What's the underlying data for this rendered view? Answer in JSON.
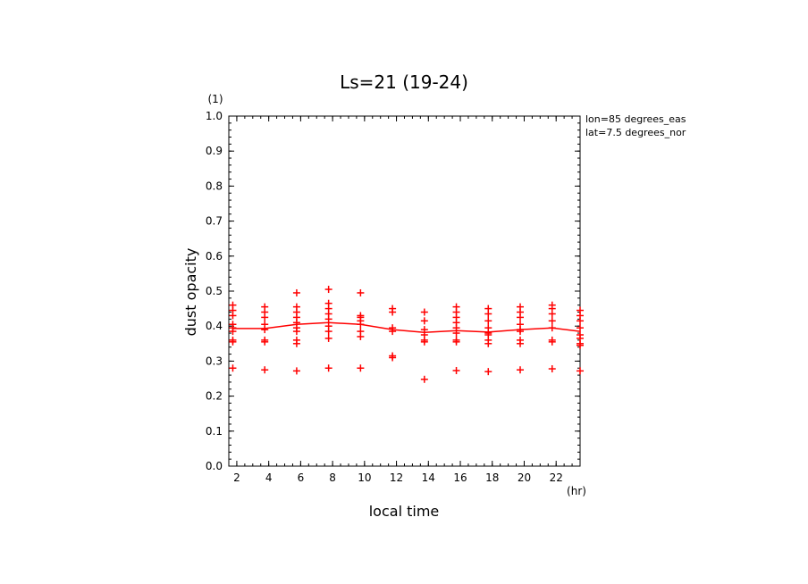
{
  "chart_data": {
    "type": "scatter",
    "title": "Ls=21 (19-24)",
    "xlabel": "local time",
    "ylabel": "dust opacity",
    "x_unit": "(hr)",
    "y_unit": "(1)",
    "xlim": [
      1.5,
      23.5
    ],
    "ylim": [
      0.0,
      1.0
    ],
    "x_ticks": [
      "2",
      "4",
      "6",
      "8",
      "10",
      "12",
      "14",
      "16",
      "18",
      "20",
      "22"
    ],
    "y_ticks": [
      "0.0",
      "0.1",
      "0.2",
      "0.3",
      "0.4",
      "0.5",
      "0.6",
      "0.7",
      "0.8",
      "0.9",
      "1.0"
    ],
    "annotations": [
      "lon=85 degrees_eas",
      "lat=7.5 degrees_nor"
    ],
    "grid": false,
    "colors": {
      "series": "#ff0000",
      "axes": "#000000"
    },
    "series": [
      {
        "type": "scatter",
        "marker": "plus",
        "points": [
          [
            1.75,
            0.46
          ],
          [
            1.75,
            0.445
          ],
          [
            1.75,
            0.43
          ],
          [
            1.75,
            0.405
          ],
          [
            1.75,
            0.395
          ],
          [
            1.75,
            0.385
          ],
          [
            1.75,
            0.36
          ],
          [
            1.75,
            0.355
          ],
          [
            1.75,
            0.28
          ],
          [
            3.75,
            0.455
          ],
          [
            3.75,
            0.44
          ],
          [
            3.75,
            0.425
          ],
          [
            3.75,
            0.405
          ],
          [
            3.75,
            0.39
          ],
          [
            3.75,
            0.36
          ],
          [
            3.75,
            0.355
          ],
          [
            3.75,
            0.275
          ],
          [
            5.75,
            0.495
          ],
          [
            5.75,
            0.455
          ],
          [
            5.75,
            0.44
          ],
          [
            5.75,
            0.425
          ],
          [
            5.75,
            0.41
          ],
          [
            5.75,
            0.395
          ],
          [
            5.75,
            0.385
          ],
          [
            5.75,
            0.36
          ],
          [
            5.75,
            0.35
          ],
          [
            5.75,
            0.272
          ],
          [
            7.75,
            0.505
          ],
          [
            7.75,
            0.465
          ],
          [
            7.75,
            0.45
          ],
          [
            7.75,
            0.435
          ],
          [
            7.75,
            0.42
          ],
          [
            7.75,
            0.4
          ],
          [
            7.75,
            0.385
          ],
          [
            7.75,
            0.365
          ],
          [
            7.75,
            0.28
          ],
          [
            9.75,
            0.495
          ],
          [
            9.75,
            0.43
          ],
          [
            9.75,
            0.425
          ],
          [
            9.75,
            0.415
          ],
          [
            9.75,
            0.405
          ],
          [
            9.75,
            0.385
          ],
          [
            9.75,
            0.37
          ],
          [
            9.75,
            0.28
          ],
          [
            11.75,
            0.45
          ],
          [
            11.75,
            0.44
          ],
          [
            11.75,
            0.395
          ],
          [
            11.75,
            0.385
          ],
          [
            11.75,
            0.315
          ],
          [
            11.75,
            0.31
          ],
          [
            13.75,
            0.44
          ],
          [
            13.75,
            0.415
          ],
          [
            13.75,
            0.39
          ],
          [
            13.75,
            0.375
          ],
          [
            13.75,
            0.36
          ],
          [
            13.75,
            0.355
          ],
          [
            13.75,
            0.248
          ],
          [
            15.75,
            0.455
          ],
          [
            15.75,
            0.44
          ],
          [
            15.75,
            0.425
          ],
          [
            15.75,
            0.41
          ],
          [
            15.75,
            0.395
          ],
          [
            15.75,
            0.38
          ],
          [
            15.75,
            0.36
          ],
          [
            15.75,
            0.355
          ],
          [
            15.75,
            0.273
          ],
          [
            17.75,
            0.45
          ],
          [
            17.75,
            0.435
          ],
          [
            17.75,
            0.415
          ],
          [
            17.75,
            0.395
          ],
          [
            17.75,
            0.38
          ],
          [
            17.75,
            0.375
          ],
          [
            17.75,
            0.36
          ],
          [
            17.75,
            0.35
          ],
          [
            17.75,
            0.27
          ],
          [
            19.75,
            0.455
          ],
          [
            19.75,
            0.44
          ],
          [
            19.75,
            0.425
          ],
          [
            19.75,
            0.405
          ],
          [
            19.75,
            0.39
          ],
          [
            19.75,
            0.385
          ],
          [
            19.75,
            0.36
          ],
          [
            19.75,
            0.35
          ],
          [
            19.75,
            0.275
          ],
          [
            21.75,
            0.46
          ],
          [
            21.75,
            0.45
          ],
          [
            21.75,
            0.435
          ],
          [
            21.75,
            0.415
          ],
          [
            21.75,
            0.395
          ],
          [
            21.75,
            0.36
          ],
          [
            21.75,
            0.355
          ],
          [
            21.75,
            0.278
          ],
          [
            23.5,
            0.445
          ],
          [
            23.5,
            0.43
          ],
          [
            23.5,
            0.415
          ],
          [
            23.5,
            0.395
          ],
          [
            23.5,
            0.375
          ],
          [
            23.5,
            0.365
          ],
          [
            23.5,
            0.35
          ],
          [
            23.5,
            0.345
          ],
          [
            23.5,
            0.272
          ]
        ]
      },
      {
        "type": "line",
        "x": [
          1.75,
          3.75,
          5.75,
          7.75,
          9.75,
          11.75,
          13.75,
          15.75,
          17.75,
          19.75,
          21.75,
          23.5
        ],
        "y": [
          0.393,
          0.393,
          0.405,
          0.41,
          0.405,
          0.39,
          0.382,
          0.387,
          0.383,
          0.39,
          0.395,
          0.385
        ]
      }
    ]
  }
}
